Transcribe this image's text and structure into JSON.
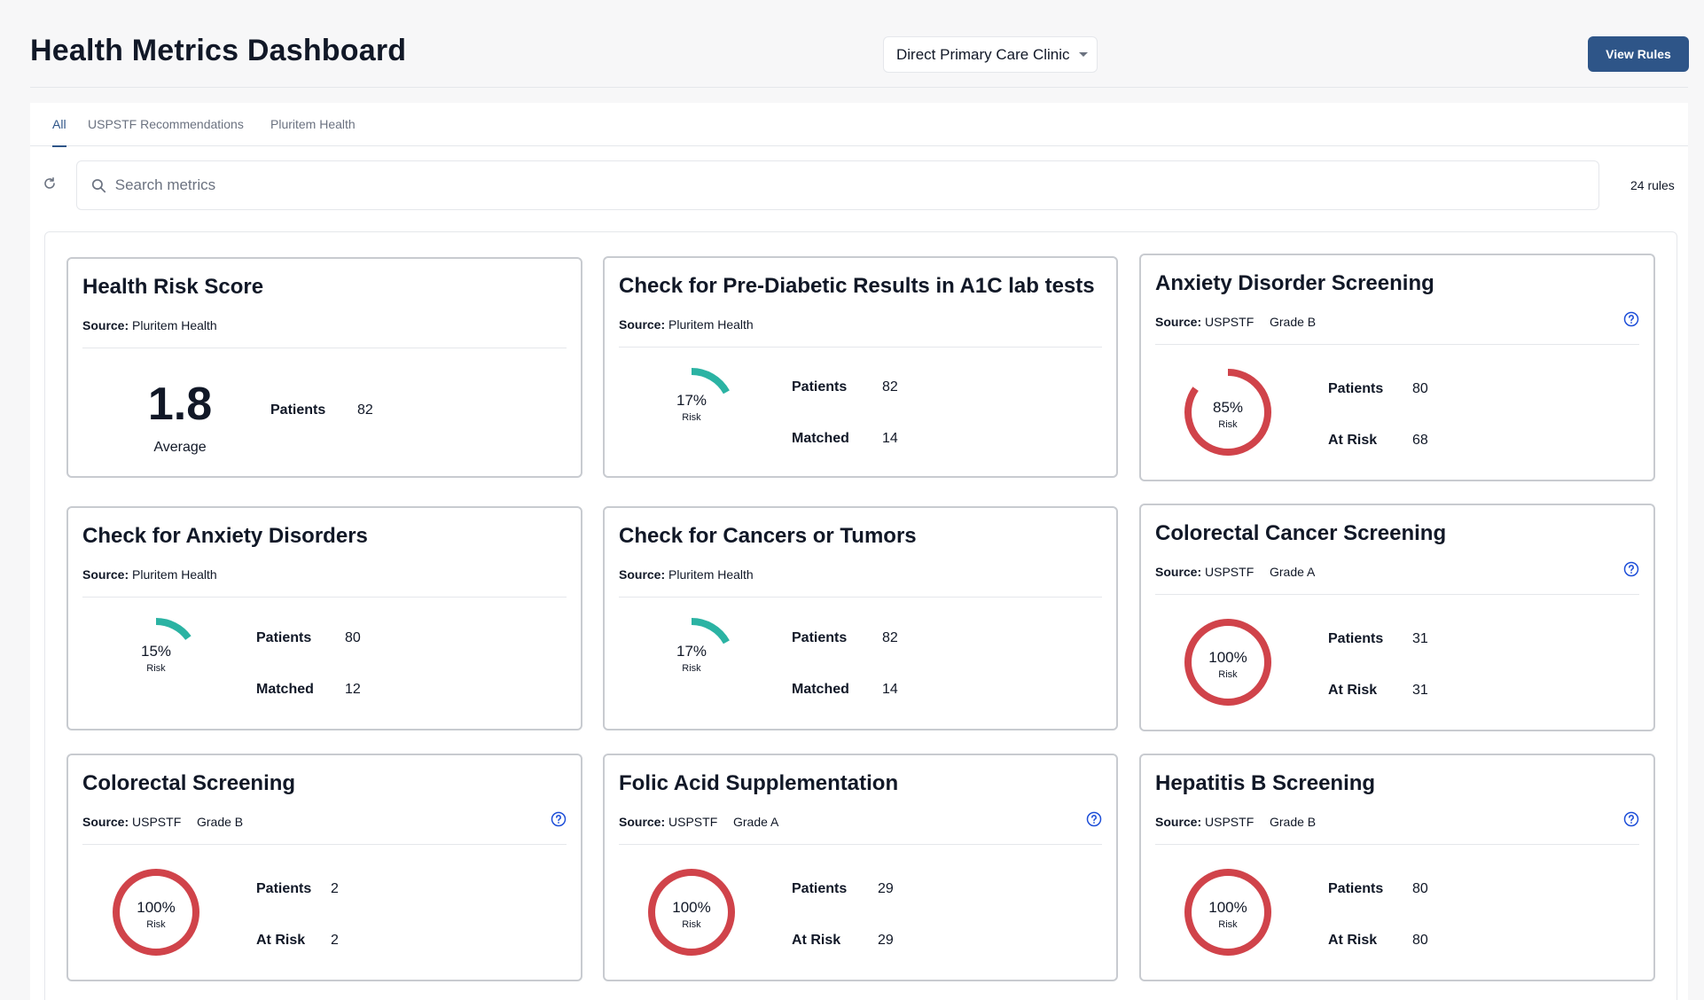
{
  "header": {
    "title": "Health Metrics Dashboard",
    "clinic": "Direct Primary Care Clinic",
    "view_rules_label": "View Rules"
  },
  "tabs": [
    {
      "label": "All",
      "active": true
    },
    {
      "label": "USPSTF Recommendations",
      "active": false
    },
    {
      "label": "Pluritem Health",
      "active": false
    }
  ],
  "search": {
    "placeholder": "Search metrics",
    "value": ""
  },
  "rules_count": "24 rules",
  "colors": {
    "accent": "#2e5588",
    "risk_teal": "#2bb3a3",
    "risk_red": "#d0434a"
  },
  "cards": [
    {
      "title": "Health Risk Score",
      "source_label": "Source:",
      "source": "Pluritem Health",
      "big_value": "1.8",
      "big_caption": "Average",
      "stats": [
        {
          "label": "Patients",
          "value": "82"
        }
      ]
    },
    {
      "title": "Check for Pre-Diabetic Results in A1C lab tests",
      "source_label": "Source:",
      "source": "Pluritem Health",
      "risk_pct": "17%",
      "risk_fraction": 0.17,
      "risk_label": "Risk",
      "stats": [
        {
          "label": "Patients",
          "value": "82"
        },
        {
          "label": "Matched",
          "value": "14"
        }
      ]
    },
    {
      "title": "Anxiety Disorder Screening",
      "source_label": "Source:",
      "source": "USPSTF",
      "grade": "Grade B",
      "risk_pct": "85%",
      "risk_fraction": 0.85,
      "risk_label": "Risk",
      "stats": [
        {
          "label": "Patients",
          "value": "80"
        },
        {
          "label": "At Risk",
          "value": "68"
        }
      ]
    },
    {
      "title": "Check for Anxiety Disorders",
      "source_label": "Source:",
      "source": "Pluritem Health",
      "risk_pct": "15%",
      "risk_fraction": 0.15,
      "risk_label": "Risk",
      "stats": [
        {
          "label": "Patients",
          "value": "80"
        },
        {
          "label": "Matched",
          "value": "12"
        }
      ]
    },
    {
      "title": "Check for Cancers or Tumors",
      "source_label": "Source:",
      "source": "Pluritem Health",
      "risk_pct": "17%",
      "risk_fraction": 0.17,
      "risk_label": "Risk",
      "stats": [
        {
          "label": "Patients",
          "value": "82"
        },
        {
          "label": "Matched",
          "value": "14"
        }
      ]
    },
    {
      "title": "Colorectal Cancer Screening",
      "source_label": "Source:",
      "source": "USPSTF",
      "grade": "Grade A",
      "risk_pct": "100%",
      "risk_fraction": 1.0,
      "risk_label": "Risk",
      "stats": [
        {
          "label": "Patients",
          "value": "31"
        },
        {
          "label": "At Risk",
          "value": "31"
        }
      ]
    },
    {
      "title": "Colorectal Screening",
      "source_label": "Source:",
      "source": "USPSTF",
      "grade": "Grade B",
      "risk_pct": "100%",
      "risk_fraction": 1.0,
      "risk_label": "Risk",
      "stats": [
        {
          "label": "Patients",
          "value": "2"
        },
        {
          "label": "At Risk",
          "value": "2"
        }
      ]
    },
    {
      "title": "Folic Acid Supplementation",
      "source_label": "Source:",
      "source": "USPSTF",
      "grade": "Grade A",
      "risk_pct": "100%",
      "risk_fraction": 1.0,
      "risk_label": "Risk",
      "stats": [
        {
          "label": "Patients",
          "value": "29"
        },
        {
          "label": "At Risk",
          "value": "29"
        }
      ]
    },
    {
      "title": "Hepatitis B Screening",
      "source_label": "Source:",
      "source": "USPSTF",
      "grade": "Grade B",
      "risk_pct": "100%",
      "risk_fraction": 1.0,
      "risk_label": "Risk",
      "stats": [
        {
          "label": "Patients",
          "value": "80"
        },
        {
          "label": "At Risk",
          "value": "80"
        }
      ]
    }
  ]
}
